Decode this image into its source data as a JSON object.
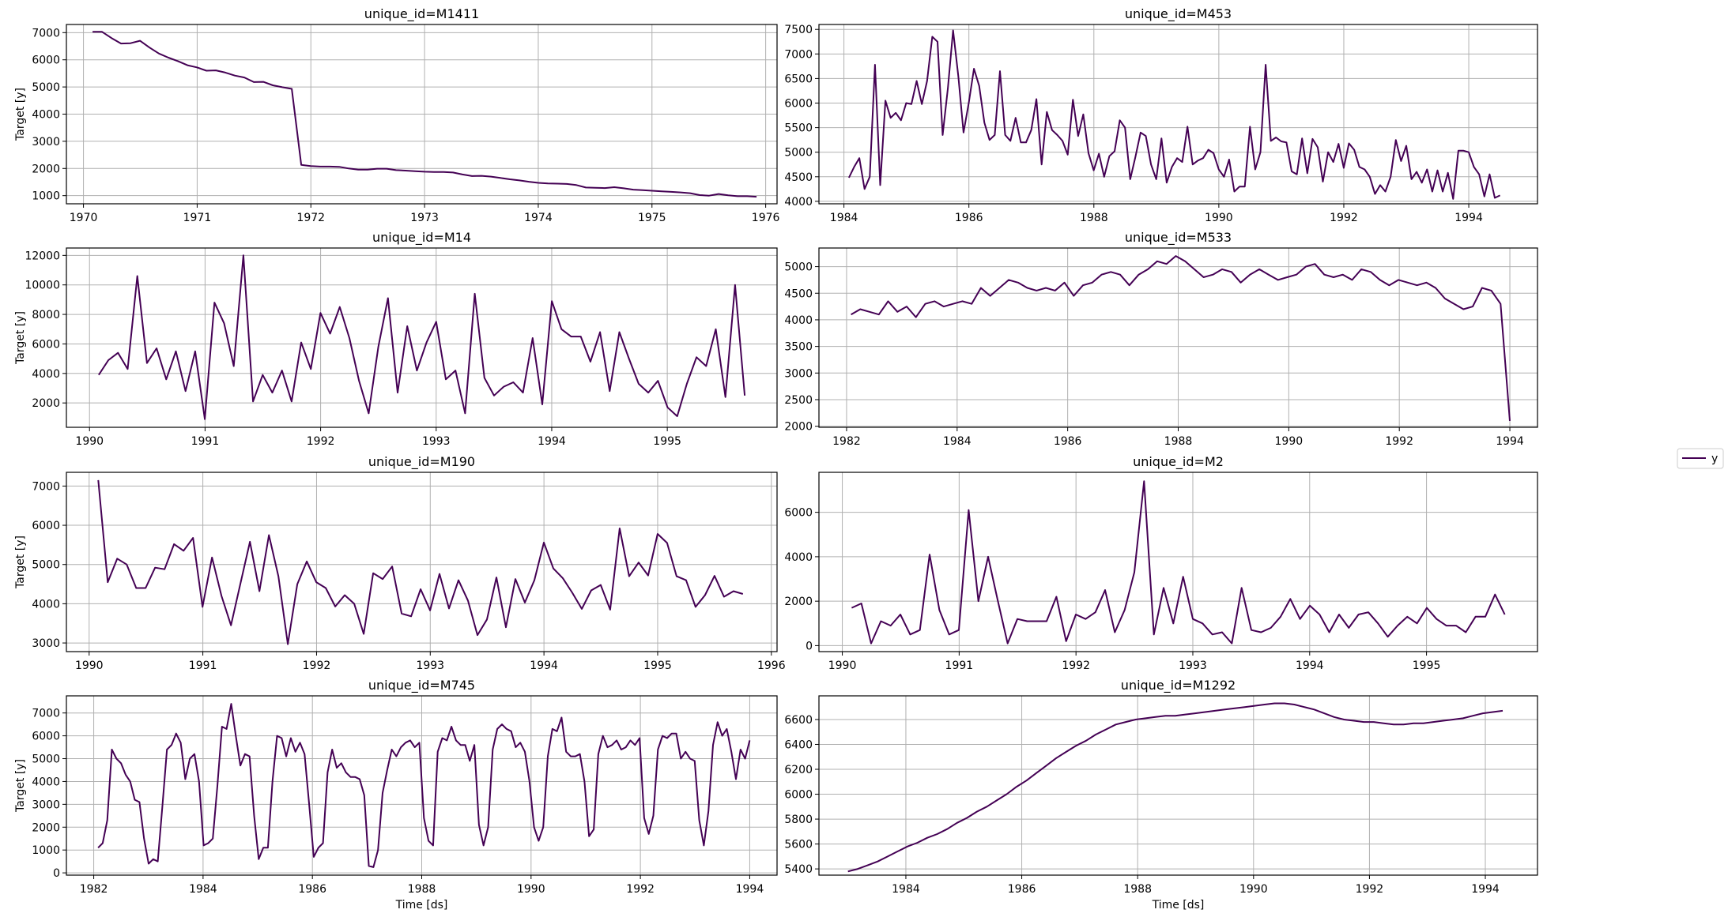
{
  "legend": {
    "label": "y",
    "color": "#440154"
  },
  "line_color": "#440154",
  "ylabel": "Target [y]",
  "xlabel": "Time [ds]",
  "chart_data": [
    {
      "type": "line",
      "title": "unique_id=M1411",
      "x_start": 1970.08,
      "x_end": 1975.92,
      "xlim": [
        1969.85,
        1976.1
      ],
      "ylim": [
        700,
        7300
      ],
      "xticks": [
        1970,
        1971,
        1972,
        1973,
        1974,
        1975,
        1976
      ],
      "yticks": [
        1000,
        2000,
        3000,
        4000,
        5000,
        6000,
        7000
      ],
      "grid": true,
      "values": [
        7030,
        7030,
        6800,
        6600,
        6610,
        6700,
        6450,
        6230,
        6080,
        5950,
        5800,
        5720,
        5600,
        5610,
        5530,
        5420,
        5350,
        5180,
        5190,
        5060,
        4990,
        4930,
        2130,
        2090,
        2070,
        2070,
        2060,
        2000,
        1960,
        1960,
        1990,
        1990,
        1940,
        1920,
        1900,
        1880,
        1870,
        1870,
        1850,
        1780,
        1720,
        1730,
        1700,
        1650,
        1600,
        1560,
        1510,
        1470,
        1450,
        1440,
        1430,
        1390,
        1300,
        1290,
        1280,
        1310,
        1270,
        1220,
        1200,
        1180,
        1160,
        1140,
        1120,
        1090,
        1020,
        1000,
        1060,
        1010,
        980,
        980,
        960
      ]
    },
    {
      "type": "line",
      "title": "unique_id=M453",
      "x_start": 1984.08,
      "x_end": 1994.5,
      "xlim": [
        1983.6,
        1995.1
      ],
      "ylim": [
        3950,
        7600
      ],
      "xticks": [
        1984,
        1986,
        1988,
        1990,
        1992,
        1994
      ],
      "yticks": [
        4000,
        4500,
        5000,
        5500,
        6000,
        6500,
        7000,
        7500
      ],
      "grid": true,
      "values": [
        4480,
        4700,
        4880,
        4250,
        4500,
        6780,
        4330,
        6050,
        5700,
        5800,
        5650,
        6000,
        5980,
        6450,
        5980,
        6450,
        7350,
        7250,
        5350,
        6300,
        7480,
        6550,
        5400,
        6000,
        6700,
        6350,
        5600,
        5250,
        5350,
        6650,
        5350,
        5230,
        5700,
        5200,
        5200,
        5450,
        6080,
        4750,
        5820,
        5450,
        5350,
        5230,
        4950,
        6070,
        5330,
        5770,
        4980,
        4630,
        4970,
        4500,
        4920,
        5020,
        5650,
        5500,
        4450,
        4900,
        5400,
        5330,
        4750,
        4450,
        5280,
        4380,
        4700,
        4880,
        4800,
        5520,
        4750,
        4830,
        4880,
        5050,
        4980,
        4650,
        4500,
        4850,
        4200,
        4300,
        4300,
        5520,
        4650,
        5000,
        6780,
        5230,
        5300,
        5220,
        5200,
        4610,
        4550,
        5280,
        4570,
        5270,
        5100,
        4400,
        5000,
        4800,
        5170,
        4680,
        5180,
        5050,
        4700,
        4650,
        4500,
        4150,
        4330,
        4200,
        4500,
        5250,
        4820,
        5130,
        4450,
        4600,
        4380,
        4650,
        4200,
        4630,
        4200,
        4580,
        4050,
        5030,
        5030,
        5000,
        4700,
        4550,
        4100,
        4550,
        4070,
        4120
      ]
    },
    {
      "type": "line",
      "title": "unique_id=M14",
      "x_start": 1990.08,
      "x_end": 1995.67,
      "xlim": [
        1989.8,
        1995.95
      ],
      "ylim": [
        350,
        12500
      ],
      "xticks": [
        1990,
        1991,
        1992,
        1993,
        1994,
        1995
      ],
      "yticks": [
        2000,
        4000,
        6000,
        8000,
        10000,
        12000
      ],
      "grid": true,
      "values": [
        3900,
        4900,
        5400,
        4300,
        10600,
        4700,
        5700,
        3600,
        5500,
        2800,
        5500,
        900,
        8800,
        7400,
        4500,
        12000,
        2100,
        3900,
        2700,
        4200,
        2100,
        6100,
        4300,
        8100,
        6700,
        8500,
        6400,
        3500,
        1300,
        5800,
        9100,
        2700,
        7200,
        4200,
        6100,
        7500,
        3600,
        4200,
        1300,
        9400,
        3700,
        2500,
        3100,
        3400,
        2700,
        6400,
        1900,
        8900,
        7000,
        6500,
        6500,
        4800,
        6800,
        2800,
        6800,
        5000,
        3300,
        2700,
        3500,
        1700,
        1100,
        3300,
        5100,
        4500,
        7000,
        2400,
        10000,
        2500
      ]
    },
    {
      "type": "line",
      "title": "unique_id=M533",
      "x_start": 1982.08,
      "x_end": 1994.0,
      "xlim": [
        1981.5,
        1994.5
      ],
      "ylim": [
        1980,
        5350
      ],
      "xticks": [
        1982,
        1984,
        1986,
        1988,
        1990,
        1992,
        1994
      ],
      "yticks": [
        2000,
        2500,
        3000,
        3500,
        4000,
        4500,
        5000
      ],
      "grid": true,
      "values": [
        4100,
        4200,
        4150,
        4100,
        4350,
        4150,
        4250,
        4050,
        4300,
        4350,
        4250,
        4300,
        4350,
        4300,
        4600,
        4450,
        4600,
        4750,
        4700,
        4600,
        4550,
        4600,
        4550,
        4700,
        4450,
        4650,
        4700,
        4850,
        4900,
        4850,
        4650,
        4850,
        4950,
        5100,
        5050,
        5200,
        5100,
        4950,
        4800,
        4850,
        4950,
        4900,
        4700,
        4850,
        4950,
        4850,
        4750,
        4800,
        4850,
        5000,
        5050,
        4850,
        4800,
        4850,
        4750,
        4950,
        4900,
        4750,
        4650,
        4750,
        4700,
        4650,
        4700,
        4600,
        4400,
        4300,
        4200,
        4250,
        4600,
        4550,
        4300,
        2100
      ]
    },
    {
      "type": "line",
      "title": "unique_id=M190",
      "x_start": 1990.08,
      "x_end": 1995.75,
      "xlim": [
        1989.8,
        1996.05
      ],
      "ylim": [
        2780,
        7350
      ],
      "xticks": [
        1990,
        1991,
        1992,
        1993,
        1994,
        1995,
        1996
      ],
      "yticks": [
        3000,
        4000,
        5000,
        6000,
        7000
      ],
      "grid": true,
      "values": [
        7150,
        4550,
        5150,
        5000,
        4400,
        4400,
        4920,
        4880,
        5520,
        5350,
        5680,
        3920,
        5180,
        4200,
        3450,
        4520,
        5580,
        4320,
        5750,
        4700,
        2970,
        4500,
        5080,
        4550,
        4400,
        3930,
        4220,
        4000,
        3230,
        4780,
        4630,
        4950,
        3750,
        3680,
        4370,
        3830,
        4760,
        3880,
        4600,
        4080,
        3200,
        3600,
        4670,
        3400,
        4630,
        4030,
        4600,
        5560,
        4900,
        4650,
        4280,
        3870,
        4340,
        4480,
        3850,
        5920,
        4700,
        5050,
        4720,
        5780,
        5550,
        4700,
        4600,
        3920,
        4220,
        4710,
        4180,
        4320,
        4250
      ]
    },
    {
      "type": "line",
      "title": "unique_id=M2",
      "x_start": 1990.08,
      "x_end": 1995.67,
      "xlim": [
        1989.8,
        1995.95
      ],
      "ylim": [
        -270,
        7800
      ],
      "xticks": [
        1990,
        1991,
        1992,
        1993,
        1994,
        1995
      ],
      "yticks": [
        0,
        2000,
        4000,
        6000
      ],
      "grid": true,
      "values": [
        1700,
        1900,
        100,
        1100,
        900,
        1400,
        500,
        700,
        4100,
        1600,
        500,
        700,
        6100,
        2000,
        4000,
        2000,
        100,
        1200,
        1100,
        1100,
        1100,
        2200,
        200,
        1400,
        1200,
        1500,
        2500,
        600,
        1600,
        3300,
        7400,
        500,
        2600,
        1000,
        3100,
        1200,
        1000,
        500,
        600,
        100,
        2600,
        700,
        600,
        800,
        1300,
        2100,
        1200,
        1800,
        1400,
        600,
        1400,
        800,
        1400,
        1500,
        1000,
        400,
        900,
        1300,
        1000,
        1700,
        1200,
        900,
        900,
        600,
        1300,
        1300,
        2300,
        1400
      ]
    },
    {
      "type": "line",
      "title": "unique_id=M745",
      "x_start": 1982.08,
      "x_end": 1994.0,
      "xlim": [
        1981.5,
        1994.5
      ],
      "ylim": [
        -100,
        7750
      ],
      "xticks": [
        1982,
        1984,
        1986,
        1988,
        1990,
        1992,
        1994
      ],
      "yticks": [
        0,
        1000,
        2000,
        3000,
        4000,
        5000,
        6000,
        7000
      ],
      "grid": true,
      "values": [
        1100,
        1300,
        2300,
        5400,
        5000,
        4800,
        4300,
        4000,
        3200,
        3100,
        1500,
        400,
        600,
        500,
        2900,
        5400,
        5600,
        6100,
        5700,
        4100,
        5000,
        5200,
        4000,
        1200,
        1300,
        1500,
        3800,
        6400,
        6300,
        7400,
        6000,
        4700,
        5200,
        5100,
        2500,
        600,
        1100,
        1100,
        4000,
        6000,
        5900,
        5100,
        5900,
        5300,
        5700,
        5200,
        3000,
        700,
        1100,
        1300,
        4400,
        5400,
        4600,
        4800,
        4400,
        4200,
        4200,
        4100,
        3400,
        300,
        250,
        1000,
        3500,
        4500,
        5400,
        5100,
        5500,
        5700,
        5800,
        5500,
        5700,
        2400,
        1400,
        1200,
        5300,
        5900,
        5800,
        6400,
        5800,
        5600,
        5600,
        4900,
        5600,
        2100,
        1200,
        2000,
        5400,
        6300,
        6500,
        6300,
        6200,
        5500,
        5700,
        5300,
        4000,
        2000,
        1400,
        2000,
        5100,
        6300,
        6200,
        6800,
        5300,
        5100,
        5100,
        5200,
        4000,
        1600,
        1900,
        5200,
        6000,
        5500,
        5600,
        5800,
        5400,
        5500,
        5800,
        5600,
        5900,
        2400,
        1700,
        2500,
        5400,
        6000,
        5900,
        6100,
        6100,
        5000,
        5300,
        5000,
        4900,
        2300,
        1200,
        2700,
        5600,
        6600,
        6000,
        6300,
        5300,
        4100,
        5400,
        5000,
        5800
      ]
    },
    {
      "type": "line",
      "title": "unique_id=M1292",
      "x_start": 1983.0,
      "x_end": 1994.3,
      "xlim": [
        1982.5,
        1994.9
      ],
      "ylim": [
        5350,
        6790
      ],
      "xticks": [
        1984,
        1986,
        1988,
        1990,
        1992,
        1994
      ],
      "yticks": [
        5400,
        5600,
        5800,
        6000,
        6200,
        6400,
        6600
      ],
      "grid": true,
      "values": [
        5380,
        5400,
        5430,
        5460,
        5500,
        5540,
        5580,
        5610,
        5650,
        5680,
        5720,
        5770,
        5810,
        5860,
        5900,
        5950,
        6000,
        6060,
        6110,
        6170,
        6230,
        6290,
        6340,
        6390,
        6430,
        6480,
        6520,
        6560,
        6580,
        6600,
        6610,
        6620,
        6630,
        6630,
        6640,
        6650,
        6660,
        6670,
        6680,
        6690,
        6700,
        6710,
        6720,
        6730,
        6730,
        6720,
        6700,
        6680,
        6650,
        6620,
        6600,
        6590,
        6580,
        6580,
        6570,
        6560,
        6560,
        6570,
        6570,
        6580,
        6590,
        6600,
        6610,
        6630,
        6650,
        6660,
        6670
      ]
    }
  ]
}
